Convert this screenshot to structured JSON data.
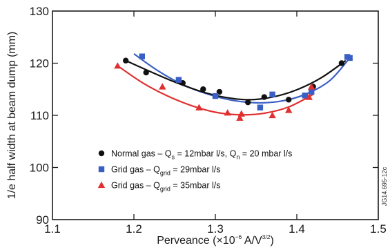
{
  "chart_data": {
    "type": "scatter",
    "xlabel_parts": {
      "base": "Perveance (×10",
      "exp": "−6",
      "after": " A/V",
      "unit_exp": "3/2",
      "close": ")"
    },
    "ylabel": "1/e half width at beam dump (mm)",
    "xlim": [
      1.1,
      1.5
    ],
    "ylim": [
      90,
      130
    ],
    "x_ticks": [
      "1.1",
      "1.2",
      "1.3",
      "1.4",
      "1.5"
    ],
    "y_ticks": [
      "90",
      "100",
      "110",
      "120",
      "130"
    ],
    "grid": false,
    "legend_position": "lower-center",
    "side_label": "JG14.695-12c",
    "series": [
      {
        "marker": "circle",
        "color": "#111111",
        "legend": {
          "pre": "Normal gas – Q",
          "s1": "s",
          "mid": " = 12mbar l/s, Q",
          "s2": "n",
          "post": " = 20 mbar l/s"
        },
        "points": [
          [
            1.19,
            120.5
          ],
          [
            1.215,
            118.2
          ],
          [
            1.26,
            116.2
          ],
          [
            1.285,
            115.0
          ],
          [
            1.305,
            114.5
          ],
          [
            1.34,
            112.5
          ],
          [
            1.36,
            113.5
          ],
          [
            1.39,
            113.0
          ],
          [
            1.42,
            115.5
          ],
          [
            1.455,
            120.0
          ]
        ],
        "fit": [
          [
            1.19,
            120.5
          ],
          [
            1.22,
            118.4
          ],
          [
            1.25,
            116.4
          ],
          [
            1.28,
            114.7
          ],
          [
            1.31,
            113.5
          ],
          [
            1.34,
            113.0
          ],
          [
            1.37,
            113.5
          ],
          [
            1.4,
            114.9
          ],
          [
            1.43,
            117.2
          ],
          [
            1.46,
            120.5
          ]
        ]
      },
      {
        "marker": "square",
        "color": "#3a5fc4",
        "legend": {
          "pre": "Grid gas – Q",
          "s1": "grid",
          "mid": " = 29mbar l/s",
          "s2": "",
          "post": ""
        },
        "points": [
          [
            1.21,
            121.3
          ],
          [
            1.255,
            116.8
          ],
          [
            1.3,
            113.7
          ],
          [
            1.355,
            111.5
          ],
          [
            1.37,
            114.0
          ],
          [
            1.41,
            113.8
          ],
          [
            1.418,
            114.5
          ],
          [
            1.462,
            121.2
          ],
          [
            1.465,
            121.0
          ]
        ],
        "fit": [
          [
            1.2,
            121.8
          ],
          [
            1.23,
            118.5
          ],
          [
            1.26,
            115.9
          ],
          [
            1.29,
            114.1
          ],
          [
            1.32,
            112.9
          ],
          [
            1.35,
            112.4
          ],
          [
            1.38,
            112.7
          ],
          [
            1.41,
            114.0
          ],
          [
            1.44,
            116.6
          ],
          [
            1.465,
            121.0
          ]
        ]
      },
      {
        "marker": "triangle",
        "color": "#e03030",
        "legend": {
          "pre": "Grid gas – Q",
          "s1": "grid",
          "mid": " = 35mbar l/s",
          "s2": "",
          "post": ""
        },
        "points": [
          [
            1.18,
            119.5
          ],
          [
            1.235,
            115.5
          ],
          [
            1.28,
            111.5
          ],
          [
            1.315,
            110.5
          ],
          [
            1.33,
            109.5
          ],
          [
            1.332,
            110.3
          ],
          [
            1.37,
            110.0
          ],
          [
            1.39,
            111.0
          ],
          [
            1.415,
            113.5
          ],
          [
            1.418,
            115.5
          ]
        ],
        "fit": [
          [
            1.18,
            119.5
          ],
          [
            1.21,
            116.3
          ],
          [
            1.24,
            113.8
          ],
          [
            1.27,
            111.9
          ],
          [
            1.3,
            110.6
          ],
          [
            1.33,
            110.1
          ],
          [
            1.36,
            110.4
          ],
          [
            1.39,
            111.6
          ],
          [
            1.42,
            114.0
          ]
        ]
      }
    ]
  }
}
